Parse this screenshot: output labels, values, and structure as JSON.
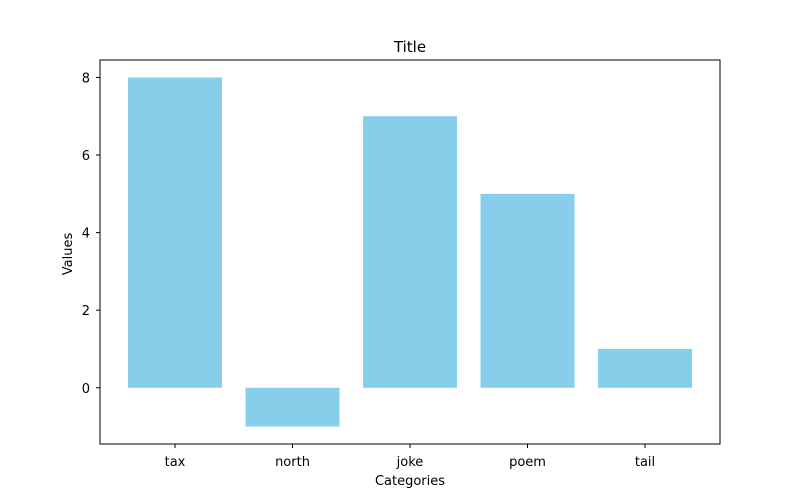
{
  "colors": {
    "bar": "#87ceeb",
    "axis": "#000000",
    "background": "#ffffff"
  },
  "chart_data": {
    "type": "bar",
    "title": "Title",
    "xlabel": "Categories",
    "ylabel": "Values",
    "categories": [
      "tax",
      "north",
      "joke",
      "poem",
      "tail"
    ],
    "values": [
      8,
      -1,
      7,
      5,
      1
    ],
    "ylim": [
      -1.45,
      8.45
    ],
    "yticks": [
      0,
      2,
      4,
      6,
      8
    ],
    "grid": false,
    "legend": "none"
  }
}
